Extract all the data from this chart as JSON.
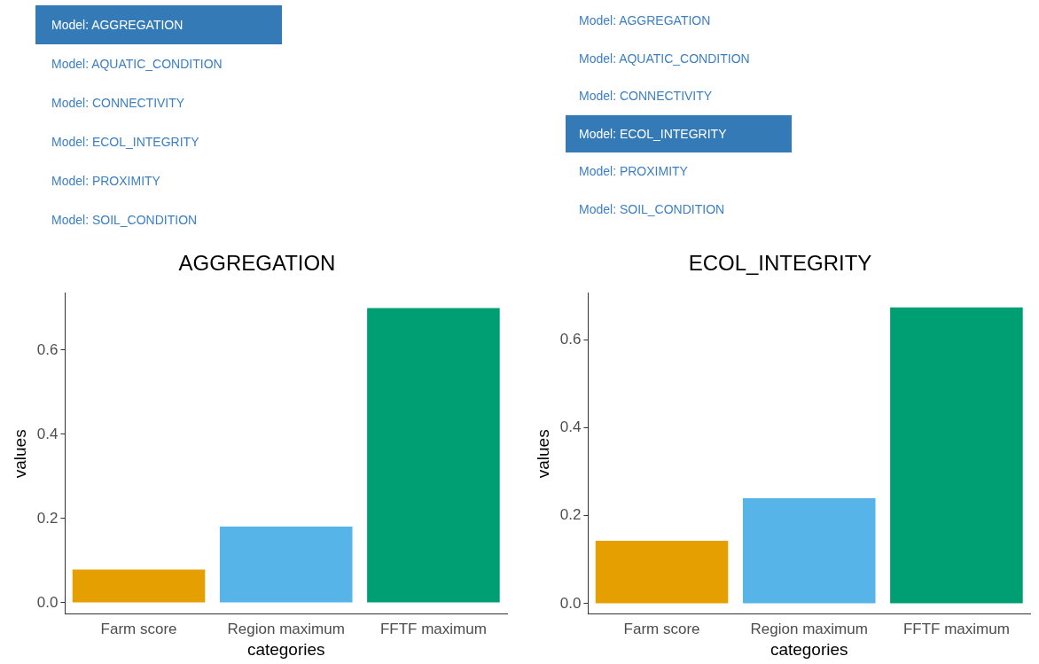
{
  "chart_data": [
    {
      "type": "other",
      "annotations": [
        "Model: AGGREGATION",
        "Model: AQUATIC_CONDITION",
        "Model: CONNECTIVITY",
        "Model: ECOL_INTEGRITY",
        "Model: PROXIMITY",
        "Model: SOIL_CONDITION"
      ]
    },
    {
      "type": "other",
      "annotations": [
        "Model: AGGREGATION",
        "Model: AQUATIC_CONDITION",
        "Model: CONNECTIVITY",
        "Model: ECOL_INTEGRITY",
        "Model: PROXIMITY",
        "Model: SOIL_CONDITION"
      ]
    },
    {
      "type": "bar",
      "title": "AGGREGATION",
      "xlabel": "categories",
      "ylabel": "values",
      "categories": [
        "Farm score",
        "Region maximum",
        "FFTF maximum"
      ],
      "values": [
        0.079,
        0.181,
        0.7
      ],
      "colors": [
        "#e69f00",
        "#56b4e9",
        "#009e73"
      ],
      "ylim": [
        -0.027,
        0.735
      ],
      "yticks": [
        {
          "value": 0,
          "label": "0.0"
        },
        0.2,
        0.4,
        0.6
      ],
      "grid": false,
      "legend": false
    },
    {
      "type": "bar",
      "title": "ECOL_INTEGRITY",
      "xlabel": "categories",
      "ylabel": "values",
      "categories": [
        "Farm score",
        "Region maximum",
        "FFTF maximum"
      ],
      "values": [
        0.143,
        0.24,
        0.674
      ],
      "colors": [
        "#e69f00",
        "#56b4e9",
        "#009e73"
      ],
      "ylim": [
        -0.024,
        0.706
      ],
      "yticks": [
        {
          "value": 0,
          "label": "0.0"
        },
        0.2,
        0.4,
        0.6
      ],
      "grid": false,
      "legend": false
    }
  ]
}
